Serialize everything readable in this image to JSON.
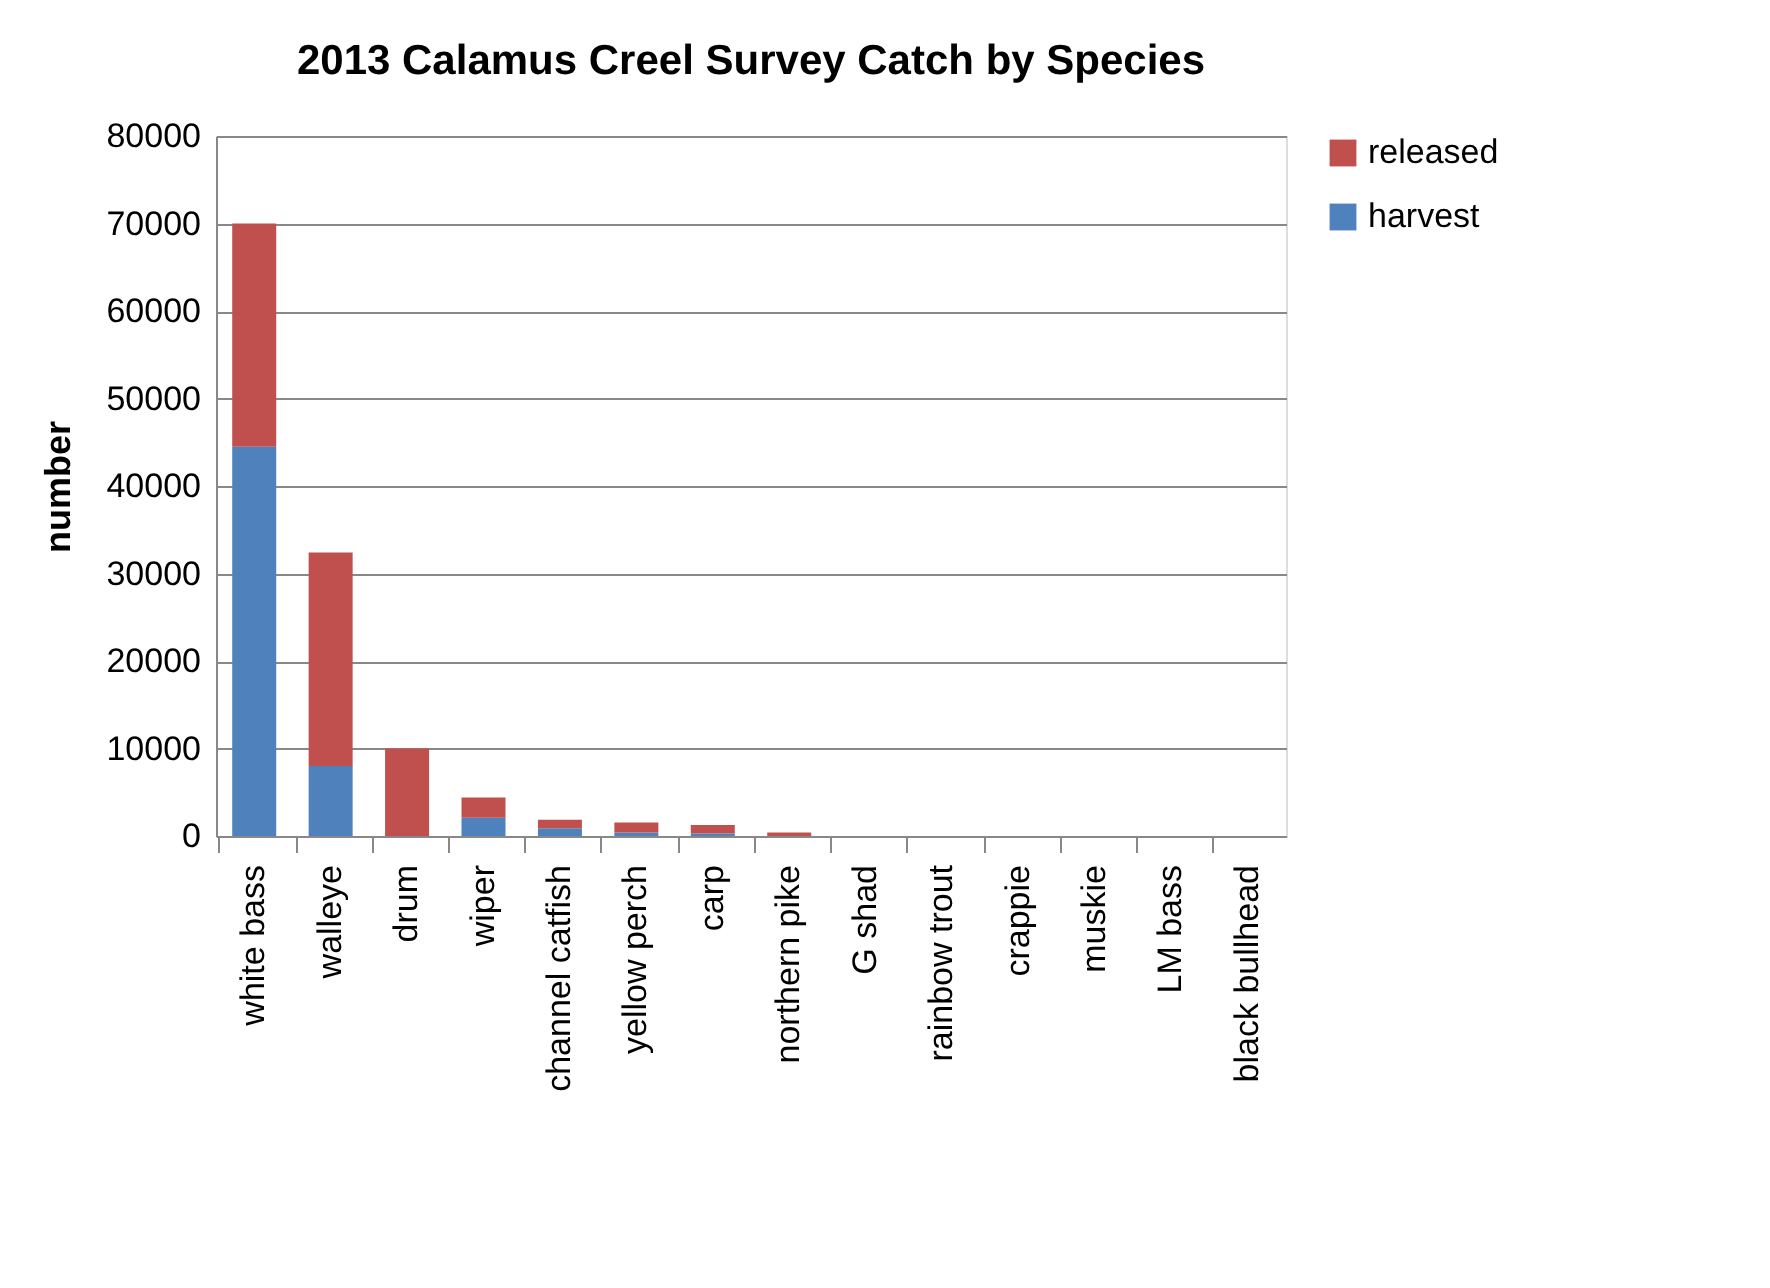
{
  "chart_data": {
    "type": "bar",
    "title": "2013 Calamus Creel Survey Catch by Species",
    "ylabel": "number",
    "stacked": true,
    "categories": [
      "white bass",
      "walleye",
      "drum",
      "wiper",
      "channel catfish",
      "yellow perch",
      "carp",
      "northern pike",
      "G shad",
      "rainbow trout",
      "crappie",
      "muskie",
      "LM bass",
      "black bullhead"
    ],
    "series": [
      {
        "name": "harvest",
        "color": "#4f81bd",
        "values": [
          44500,
          8000,
          0,
          2100,
          900,
          400,
          300,
          0,
          0,
          0,
          0,
          0,
          0,
          0
        ]
      },
      {
        "name": "released",
        "color": "#c0504d",
        "values": [
          25500,
          24400,
          10000,
          2300,
          950,
          1150,
          950,
          400,
          0,
          0,
          0,
          0,
          0,
          0
        ]
      }
    ],
    "ylim": [
      0,
      80000
    ],
    "yticks": [
      0,
      10000,
      20000,
      30000,
      40000,
      50000,
      60000,
      70000,
      80000
    ],
    "grid": "y",
    "legend": "right"
  }
}
